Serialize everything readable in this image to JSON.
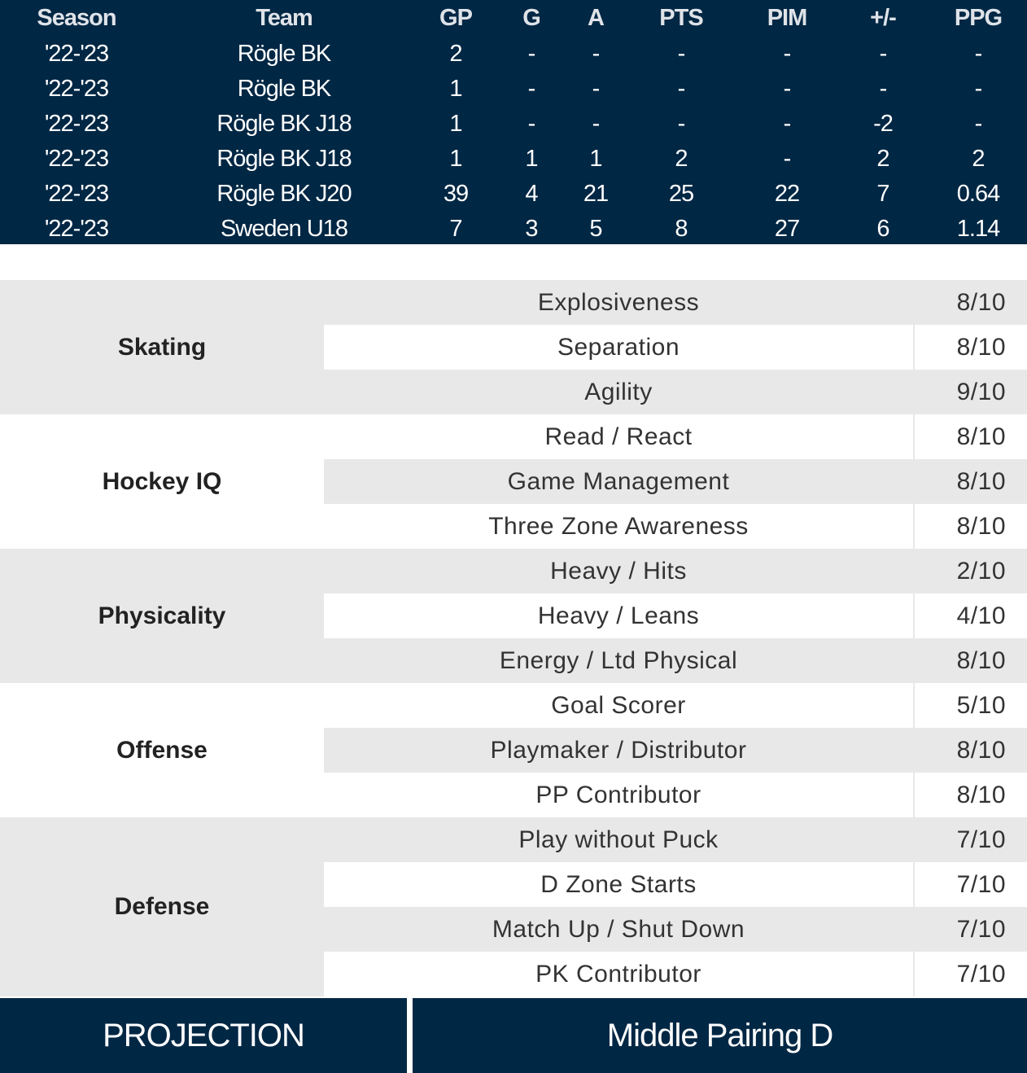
{
  "stats": {
    "headers": [
      "Season",
      "Team",
      "GP",
      "G",
      "A",
      "PTS",
      "PIM",
      "+/-",
      "PPG"
    ],
    "rows": [
      [
        "'22-'23",
        "Rögle BK",
        "2",
        "-",
        "-",
        "-",
        "-",
        "-",
        "-"
      ],
      [
        "'22-'23",
        "Rögle BK",
        "1",
        "-",
        "-",
        "-",
        "-",
        "-",
        "-"
      ],
      [
        "'22-'23",
        "Rögle BK J18",
        "1",
        "-",
        "-",
        "-",
        "-",
        "-2",
        "-"
      ],
      [
        "'22-'23",
        "Rögle BK J18",
        "1",
        "1",
        "1",
        "2",
        "-",
        "2",
        "2"
      ],
      [
        "'22-'23",
        "Rögle BK J20",
        "39",
        "4",
        "21",
        "25",
        "22",
        "7",
        "0.64"
      ],
      [
        "'22-'23",
        "Sweden U18",
        "7",
        "3",
        "5",
        "8",
        "27",
        "6",
        "1.14"
      ]
    ]
  },
  "scouting": [
    {
      "category": "Skating",
      "items": [
        {
          "skill": "Explosiveness",
          "rating": "8/10"
        },
        {
          "skill": "Separation",
          "rating": "8/10"
        },
        {
          "skill": "Agility",
          "rating": "9/10"
        }
      ]
    },
    {
      "category": "Hockey IQ",
      "items": [
        {
          "skill": "Read / React",
          "rating": "8/10"
        },
        {
          "skill": "Game Management",
          "rating": "8/10"
        },
        {
          "skill": "Three Zone Awareness",
          "rating": "8/10"
        }
      ]
    },
    {
      "category": "Physicality",
      "items": [
        {
          "skill": "Heavy / Hits",
          "rating": "2/10"
        },
        {
          "skill": "Heavy / Leans",
          "rating": "4/10"
        },
        {
          "skill": "Energy / Ltd Physical",
          "rating": "8/10"
        }
      ]
    },
    {
      "category": "Offense",
      "items": [
        {
          "skill": "Goal Scorer",
          "rating": "5/10"
        },
        {
          "skill": "Playmaker / Distributor",
          "rating": "8/10"
        },
        {
          "skill": "PP Contributor",
          "rating": "8/10"
        }
      ]
    },
    {
      "category": "Defense",
      "items": [
        {
          "skill": "Play without Puck",
          "rating": "7/10"
        },
        {
          "skill": "D Zone Starts",
          "rating": "7/10"
        },
        {
          "skill": "Match Up / Shut Down",
          "rating": "7/10"
        },
        {
          "skill": "PK Contributor",
          "rating": "7/10"
        }
      ]
    }
  ],
  "projection": {
    "label": "PROJECTION",
    "value": "Middle Pairing D"
  },
  "colors": {
    "navy": "#002744",
    "grey": "#e8e8e8"
  }
}
